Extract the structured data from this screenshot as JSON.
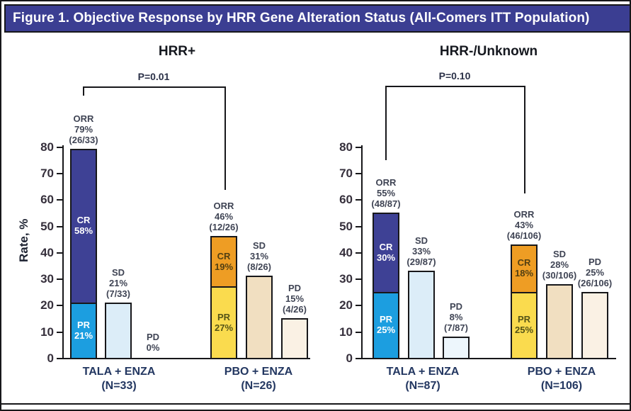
{
  "figure": {
    "title": "Figure 1. Objective Response by HRR Gene Alteration Status (All-Comers ITT Population)"
  },
  "colors": {
    "title_bar_bg": "#3b3e92",
    "cr_navy": "#3e4195",
    "pr_blue": "#1c9ee0",
    "sd_light_blue": "#dcedf8",
    "pd_pale_blue": "#edf6fc",
    "cr_orange": "#ee9d24",
    "pr_yellow": "#fadb4e",
    "sd_tan": "#f1dfc1",
    "pd_cream": "#faf1e4",
    "label_on_blue": "#ffffff",
    "label_on_orange": "#523f12",
    "label_on_yellow": "#555417",
    "axis_line": "#17171a"
  },
  "chart_data": [
    {
      "type": "bar",
      "title": "HRR+",
      "p_value": "P=0.01",
      "ylabel": "Rate, %",
      "ylim": [
        0,
        80
      ],
      "yticks": [
        0,
        10,
        20,
        30,
        40,
        50,
        60,
        70,
        80
      ],
      "grid": false,
      "groups": [
        {
          "category": [
            "TALA + ENZA",
            "(N=33)"
          ],
          "bars": [
            {
              "kind": "stacked",
              "annotation": [
                "ORR",
                "79%",
                "(26/33)"
              ],
              "total": 79,
              "segments": [
                {
                  "name": "PR",
                  "pct": 21,
                  "color": "pr_blue",
                  "label": [
                    "PR",
                    "21%"
                  ],
                  "label_color": "label_on_blue"
                },
                {
                  "name": "CR",
                  "pct": 58,
                  "color": "cr_navy",
                  "label": [
                    "CR",
                    "58%"
                  ],
                  "label_color": "label_on_blue"
                }
              ]
            },
            {
              "kind": "single",
              "annotation": [
                "SD",
                "21%",
                "(7/33)"
              ],
              "pct": 21,
              "color": "sd_light_blue"
            },
            {
              "kind": "none",
              "annotation": [
                "PD",
                "0%"
              ],
              "pct": 0
            }
          ]
        },
        {
          "category": [
            "PBO + ENZA",
            "(N=26)"
          ],
          "bars": [
            {
              "kind": "stacked",
              "annotation": [
                "ORR",
                "46%",
                "(12/26)"
              ],
              "total": 46,
              "segments": [
                {
                  "name": "PR",
                  "pct": 27,
                  "color": "pr_yellow",
                  "label": [
                    "PR",
                    "27%"
                  ],
                  "label_color": "label_on_yellow"
                },
                {
                  "name": "CR",
                  "pct": 19,
                  "color": "cr_orange",
                  "label": [
                    "CR",
                    "19%"
                  ],
                  "label_color": "label_on_orange"
                }
              ]
            },
            {
              "kind": "single",
              "annotation": [
                "SD",
                "31%",
                "(8/26)"
              ],
              "pct": 31,
              "color": "sd_tan"
            },
            {
              "kind": "single",
              "annotation": [
                "PD",
                "15%",
                "(4/26)"
              ],
              "pct": 15,
              "color": "pd_cream"
            }
          ]
        }
      ]
    },
    {
      "type": "bar",
      "title": "HRR-/Unknown",
      "p_value": "P=0.10",
      "ylabel": "",
      "ylim": [
        0,
        80
      ],
      "yticks": [
        0,
        10,
        20,
        30,
        40,
        50,
        60,
        70,
        80
      ],
      "grid": false,
      "groups": [
        {
          "category": [
            "TALA + ENZA",
            "(N=87)"
          ],
          "bars": [
            {
              "kind": "stacked",
              "annotation": [
                "ORR",
                "55%",
                "(48/87)"
              ],
              "total": 55,
              "segments": [
                {
                  "name": "PR",
                  "pct": 25,
                  "color": "pr_blue",
                  "label": [
                    "PR",
                    "25%"
                  ],
                  "label_color": "label_on_blue"
                },
                {
                  "name": "CR",
                  "pct": 30,
                  "color": "cr_navy",
                  "label": [
                    "CR",
                    "30%"
                  ],
                  "label_color": "label_on_blue"
                }
              ]
            },
            {
              "kind": "single",
              "annotation": [
                "SD",
                "33%",
                "(29/87)"
              ],
              "pct": 33,
              "color": "sd_light_blue"
            },
            {
              "kind": "single",
              "annotation": [
                "PD",
                "8%",
                "(7/87)"
              ],
              "pct": 8,
              "color": "pd_pale_blue"
            }
          ]
        },
        {
          "category": [
            "PBO + ENZA",
            "(N=106)"
          ],
          "bars": [
            {
              "kind": "stacked",
              "annotation": [
                "ORR",
                "43%",
                "(46/106)"
              ],
              "total": 43,
              "segments": [
                {
                  "name": "PR",
                  "pct": 25,
                  "color": "pr_yellow",
                  "label": [
                    "PR",
                    "25%"
                  ],
                  "label_color": "label_on_yellow"
                },
                {
                  "name": "CR",
                  "pct": 18,
                  "color": "cr_orange",
                  "label": [
                    "CR",
                    "18%"
                  ],
                  "label_color": "label_on_orange"
                }
              ]
            },
            {
              "kind": "single",
              "annotation": [
                "SD",
                "28%",
                "(30/106)"
              ],
              "pct": 28,
              "color": "sd_tan"
            },
            {
              "kind": "single",
              "annotation": [
                "PD",
                "25%",
                "(26/106)"
              ],
              "pct": 25,
              "color": "pd_cream"
            }
          ]
        }
      ]
    }
  ]
}
